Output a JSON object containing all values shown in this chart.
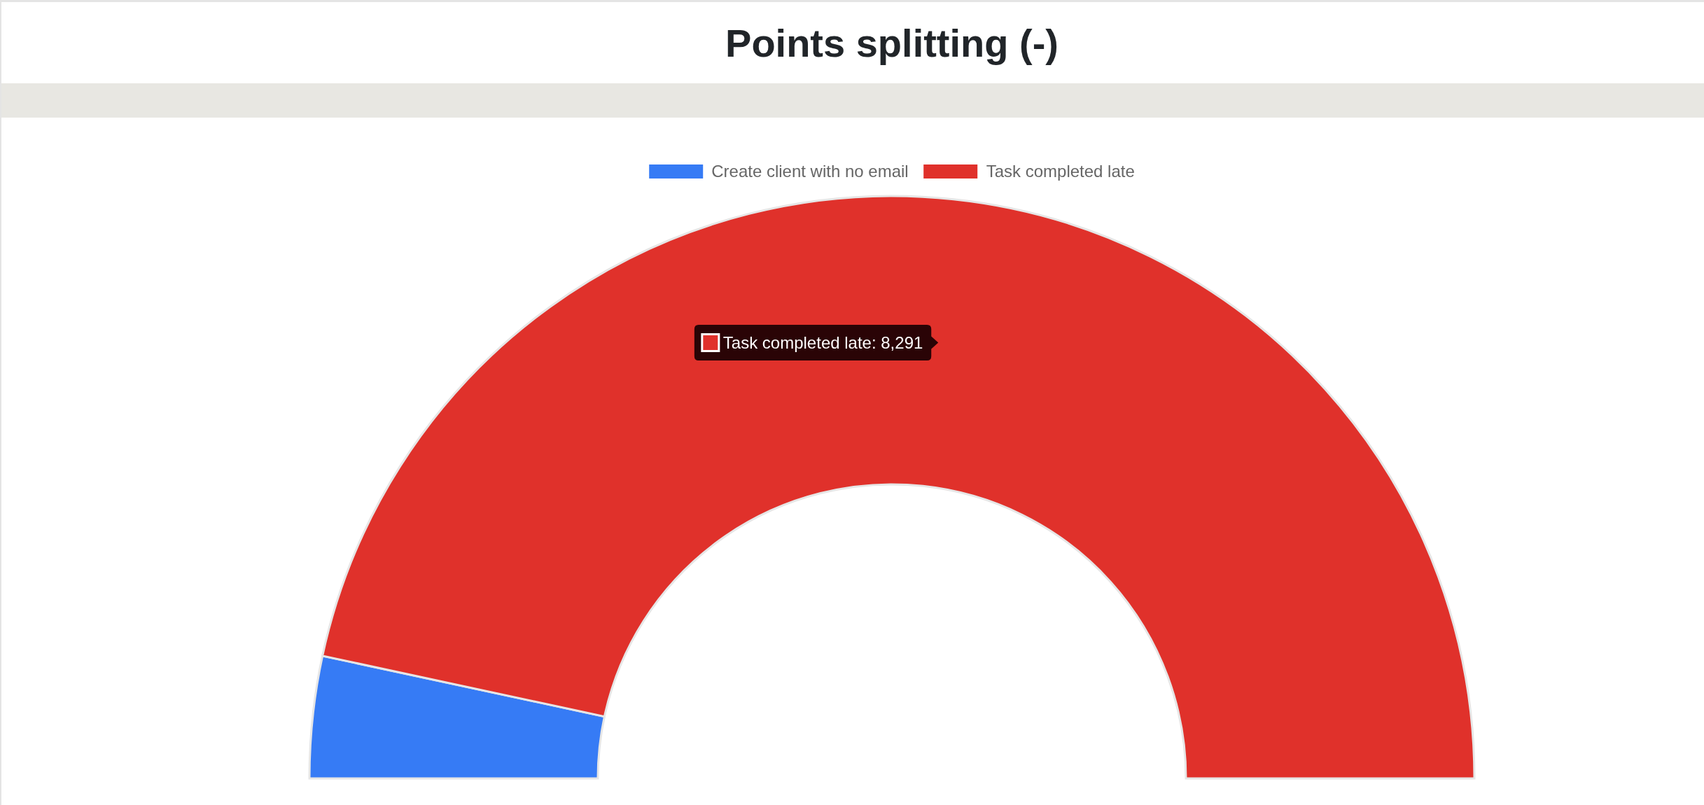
{
  "chart_data": {
    "type": "donut",
    "title": "Points splitting (-)",
    "categories": [
      "Create client with no email",
      "Task completed late"
    ],
    "values": [
      600,
      8291
    ],
    "colors": [
      "#367bf5",
      "#e0312b"
    ],
    "legend": "top",
    "value_labels": [
      null,
      "Task completed late: 8,291"
    ]
  }
}
